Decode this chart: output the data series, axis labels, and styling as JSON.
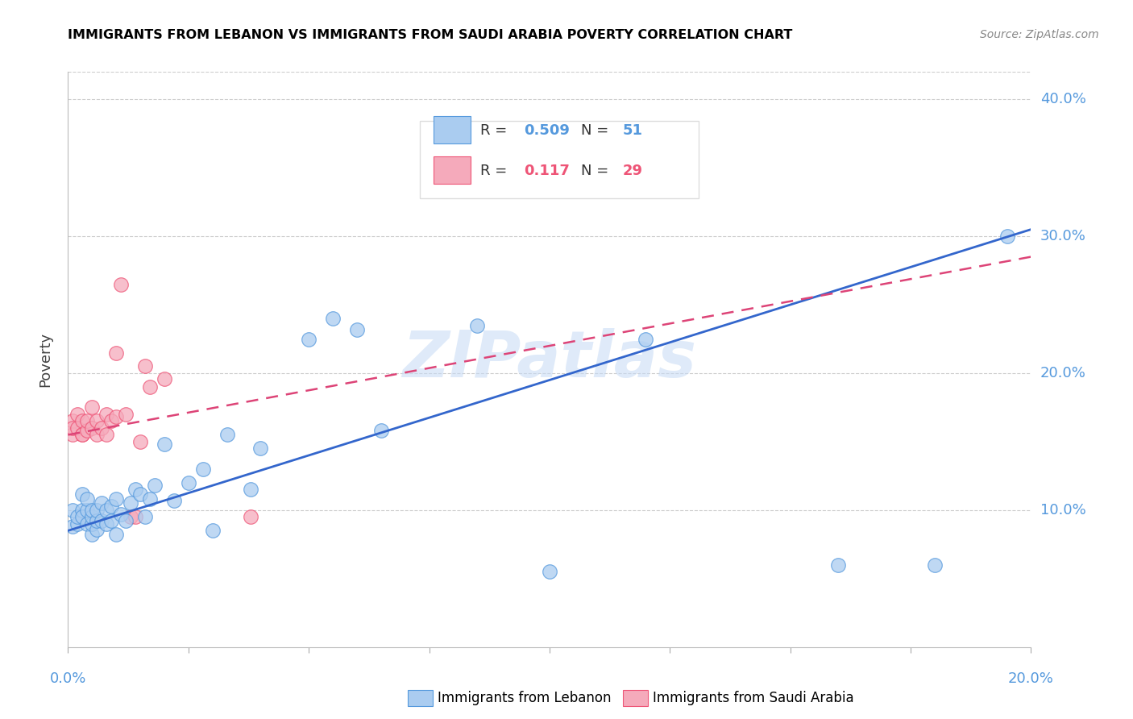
{
  "title": "IMMIGRANTS FROM LEBANON VS IMMIGRANTS FROM SAUDI ARABIA POVERTY CORRELATION CHART",
  "source": "Source: ZipAtlas.com",
  "ylabel": "Poverty",
  "watermark": "ZIPatlas",
  "legend_blue_label": "Immigrants from Lebanon",
  "legend_pink_label": "Immigrants from Saudi Arabia",
  "blue_color": "#aaccf0",
  "pink_color": "#f5aabb",
  "blue_edge_color": "#5599dd",
  "pink_edge_color": "#ee5577",
  "blue_line_color": "#3366cc",
  "pink_line_color": "#dd4477",
  "xlim": [
    0.0,
    0.2
  ],
  "ylim": [
    0.0,
    0.42
  ],
  "yticks": [
    0.1,
    0.2,
    0.3,
    0.4
  ],
  "ytick_labels": [
    "10.0%",
    "20.0%",
    "30.0%",
    "40.0%"
  ],
  "blue_line_x0": 0.0,
  "blue_line_y0": 0.085,
  "blue_line_x1": 0.2,
  "blue_line_y1": 0.305,
  "pink_line_x0": 0.0,
  "pink_line_y0": 0.155,
  "pink_line_x1": 0.2,
  "pink_line_y1": 0.285,
  "blue_x": [
    0.001,
    0.001,
    0.002,
    0.002,
    0.003,
    0.003,
    0.003,
    0.004,
    0.004,
    0.004,
    0.005,
    0.005,
    0.005,
    0.005,
    0.006,
    0.006,
    0.006,
    0.007,
    0.007,
    0.008,
    0.008,
    0.009,
    0.009,
    0.01,
    0.01,
    0.011,
    0.012,
    0.013,
    0.014,
    0.015,
    0.016,
    0.017,
    0.018,
    0.02,
    0.022,
    0.025,
    0.028,
    0.03,
    0.033,
    0.038,
    0.04,
    0.05,
    0.055,
    0.06,
    0.065,
    0.085,
    0.1,
    0.12,
    0.16,
    0.18,
    0.195
  ],
  "blue_y": [
    0.088,
    0.1,
    0.09,
    0.095,
    0.1,
    0.112,
    0.095,
    0.09,
    0.1,
    0.108,
    0.082,
    0.09,
    0.095,
    0.1,
    0.086,
    0.092,
    0.1,
    0.092,
    0.105,
    0.09,
    0.1,
    0.092,
    0.103,
    0.082,
    0.108,
    0.097,
    0.092,
    0.105,
    0.115,
    0.112,
    0.095,
    0.108,
    0.118,
    0.148,
    0.107,
    0.12,
    0.13,
    0.085,
    0.155,
    0.115,
    0.145,
    0.225,
    0.24,
    0.232,
    0.158,
    0.235,
    0.055,
    0.225,
    0.06,
    0.06,
    0.3
  ],
  "pink_x": [
    0.001,
    0.001,
    0.001,
    0.002,
    0.002,
    0.003,
    0.003,
    0.003,
    0.004,
    0.004,
    0.005,
    0.005,
    0.006,
    0.006,
    0.007,
    0.008,
    0.008,
    0.009,
    0.01,
    0.01,
    0.011,
    0.012,
    0.013,
    0.014,
    0.015,
    0.016,
    0.017,
    0.02,
    0.038
  ],
  "pink_y": [
    0.155,
    0.165,
    0.16,
    0.16,
    0.17,
    0.155,
    0.165,
    0.155,
    0.158,
    0.165,
    0.16,
    0.175,
    0.165,
    0.155,
    0.16,
    0.17,
    0.155,
    0.165,
    0.168,
    0.215,
    0.265,
    0.17,
    0.095,
    0.095,
    0.15,
    0.205,
    0.19,
    0.196,
    0.095
  ]
}
